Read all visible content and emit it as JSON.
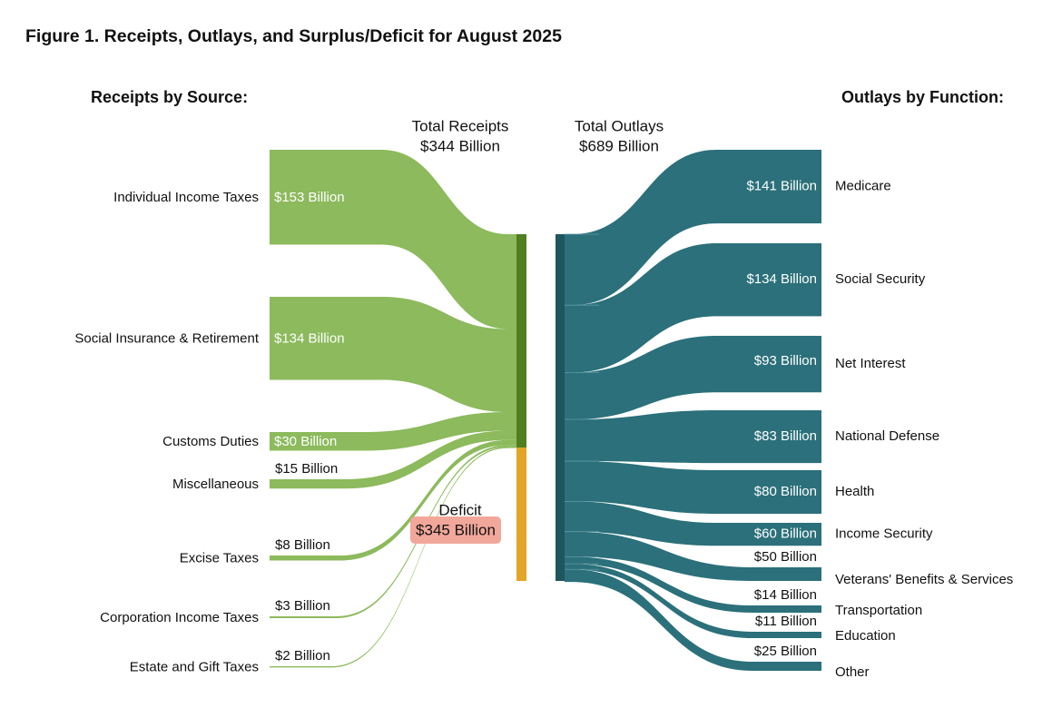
{
  "chart_data": {
    "type": "sankey",
    "title": "Figure 1. Receipts, Outlays, and Surplus/Deficit for August 2025",
    "receipts_heading": "Receipts by Source:",
    "outlays_heading": "Outlays by Function:",
    "total_receipts": {
      "label": "Total Receipts",
      "value": 344,
      "value_label": "$344 Billion"
    },
    "total_outlays": {
      "label": "Total Outlays",
      "value": 689,
      "value_label": "$689 Billion"
    },
    "deficit": {
      "label": "Deficit",
      "value": 345,
      "value_label": "$345 Billion"
    },
    "unit": "Billion USD",
    "receipts": [
      {
        "label": "Individual Income Taxes",
        "value": 153,
        "value_label": "$153 Billion"
      },
      {
        "label": "Social Insurance & Retirement",
        "value": 134,
        "value_label": "$134 Billion"
      },
      {
        "label": "Customs Duties",
        "value": 30,
        "value_label": "$30 Billion"
      },
      {
        "label": "Miscellaneous",
        "value": 15,
        "value_label": "$15 Billion"
      },
      {
        "label": "Excise Taxes",
        "value": 8,
        "value_label": "$8 Billion"
      },
      {
        "label": "Corporation Income Taxes",
        "value": 3,
        "value_label": "$3 Billion"
      },
      {
        "label": "Estate and Gift Taxes",
        "value": 2,
        "value_label": "$2 Billion"
      }
    ],
    "outlays": [
      {
        "label": "Medicare",
        "value": 141,
        "value_label": "$141 Billion"
      },
      {
        "label": "Social Security",
        "value": 134,
        "value_label": "$134 Billion"
      },
      {
        "label": "Net Interest",
        "value": 93,
        "value_label": "$93 Billion"
      },
      {
        "label": "National Defense",
        "value": 83,
        "value_label": "$83 Billion"
      },
      {
        "label": "Health",
        "value": 80,
        "value_label": "$80 Billion"
      },
      {
        "label": "Income Security",
        "value": 60,
        "value_label": "$60 Billion"
      },
      {
        "label": "Veterans' Benefits & Services",
        "value": 50,
        "value_label": "$50 Billion"
      },
      {
        "label": "Transportation",
        "value": 14,
        "value_label": "$14 Billion"
      },
      {
        "label": "Education",
        "value": 11,
        "value_label": "$11 Billion"
      },
      {
        "label": "Other",
        "value": 25,
        "value_label": "$25 Billion"
      }
    ],
    "colors": {
      "receipts_flow": "#8cba5c",
      "receipts_bar": "#4f7f1f",
      "deficit_bar": "#e2a526",
      "deficit_label_bg": "#f2a79b",
      "outlays_flow": "#2b707a",
      "outlays_bar": "#1f555d"
    }
  }
}
